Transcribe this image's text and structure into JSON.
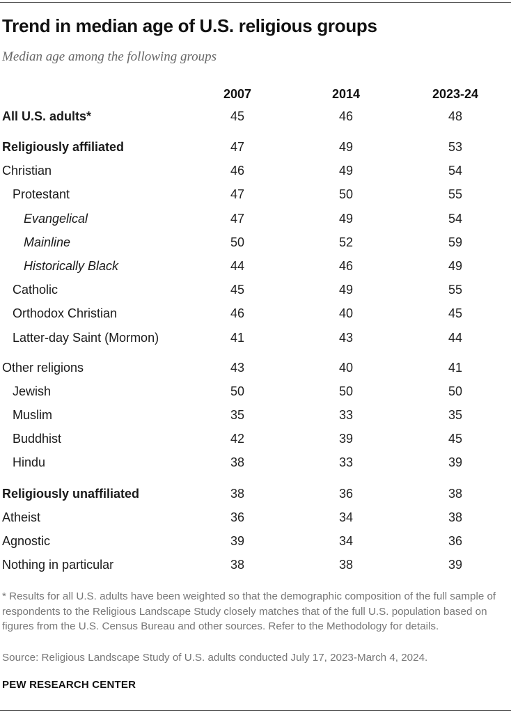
{
  "title": "Trend in median age of U.S. religious groups",
  "subtitle": "Median age among the following groups",
  "chart_data": {
    "type": "table",
    "title": "Trend in median age of U.S. religious groups",
    "subtitle": "Median age among the following groups",
    "columns": [
      "2007",
      "2014",
      "2023-24"
    ],
    "rows": [
      {
        "label": "All U.S. adults*",
        "values": [
          "45",
          "46",
          "48"
        ],
        "level": 0,
        "bold": true
      },
      {
        "label": "Religiously affiliated",
        "values": [
          "47",
          "49",
          "53"
        ],
        "level": 0,
        "bold": true
      },
      {
        "label": "Christian",
        "values": [
          "46",
          "49",
          "54"
        ],
        "level": 0,
        "bold": false
      },
      {
        "label": "Protestant",
        "values": [
          "47",
          "50",
          "55"
        ],
        "level": 1,
        "bold": false
      },
      {
        "label": "Evangelical",
        "values": [
          "47",
          "49",
          "54"
        ],
        "level": 2,
        "bold": false
      },
      {
        "label": "Mainline",
        "values": [
          "50",
          "52",
          "59"
        ],
        "level": 2,
        "bold": false
      },
      {
        "label": "Historically Black",
        "values": [
          "44",
          "46",
          "49"
        ],
        "level": 2,
        "bold": false
      },
      {
        "label": "Catholic",
        "values": [
          "45",
          "49",
          "55"
        ],
        "level": 1,
        "bold": false
      },
      {
        "label": "Orthodox Christian",
        "values": [
          "46",
          "40",
          "45"
        ],
        "level": 1,
        "bold": false
      },
      {
        "label": "Latter-day Saint (Mormon)",
        "values": [
          "41",
          "43",
          "44"
        ],
        "level": 1,
        "bold": false
      },
      {
        "label": "Other religions",
        "values": [
          "43",
          "40",
          "41"
        ],
        "level": 0,
        "bold": false
      },
      {
        "label": "Jewish",
        "values": [
          "50",
          "50",
          "50"
        ],
        "level": 1,
        "bold": false
      },
      {
        "label": "Muslim",
        "values": [
          "35",
          "33",
          "35"
        ],
        "level": 1,
        "bold": false
      },
      {
        "label": "Buddhist",
        "values": [
          "42",
          "39",
          "45"
        ],
        "level": 1,
        "bold": false
      },
      {
        "label": "Hindu",
        "values": [
          "38",
          "33",
          "39"
        ],
        "level": 1,
        "bold": false
      },
      {
        "label": "Religiously unaffiliated",
        "values": [
          "38",
          "36",
          "38"
        ],
        "level": 0,
        "bold": true
      },
      {
        "label": "Atheist",
        "values": [
          "36",
          "34",
          "38"
        ],
        "level": 0,
        "bold": false
      },
      {
        "label": "Agnostic",
        "values": [
          "39",
          "34",
          "36"
        ],
        "level": 0,
        "bold": false
      },
      {
        "label": "Nothing in particular",
        "values": [
          "38",
          "38",
          "39"
        ],
        "level": 0,
        "bold": false
      }
    ]
  },
  "note": "* Results for all U.S. adults have been weighted so that the demographic composition of the full sample of respondents to the Religious Landscape Study closely matches that of the full U.S. population based on figures from the U.S. Census Bureau and other sources. Refer to the Methodology for details.",
  "source": "Source: Religious Landscape Study of U.S. adults conducted July 17, 2023-March 4, 2024.",
  "organization": "PEW RESEARCH CENTER",
  "colors": {
    "text": "#1a1a1a",
    "muted": "#777777",
    "subtitle": "#666666",
    "rule": "#555555"
  }
}
